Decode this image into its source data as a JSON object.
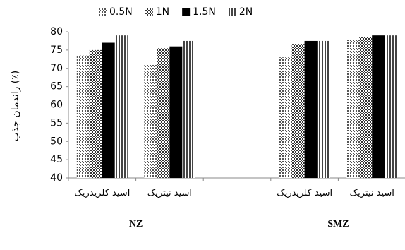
{
  "chart_data": {
    "type": "bar",
    "y_label": "راندمان جذب (٪)",
    "categories": [
      "اسید کلریدریک",
      "اسید نیتریک",
      null,
      "اسید کلریدریک",
      "اسید نیتریک"
    ],
    "groups": [
      {
        "label": "NZ",
        "categories": [
          0,
          1
        ]
      },
      {
        "label": "SMZ",
        "categories": [
          3,
          4
        ]
      }
    ],
    "series": [
      {
        "name": "0.5N",
        "color": "#555555",
        "pattern": "dots",
        "values": [
          73.5,
          71,
          null,
          73,
          78
        ]
      },
      {
        "name": "1N",
        "color": "#333333",
        "pattern": "checker",
        "values": [
          75,
          75.5,
          null,
          76.5,
          78.5
        ]
      },
      {
        "name": "1.5N",
        "color": "#000000",
        "pattern": "solid",
        "values": [
          77,
          76,
          null,
          77.5,
          79
        ]
      },
      {
        "name": "2N",
        "color": "#444444",
        "pattern": "stripes",
        "values": [
          79,
          77.5,
          null,
          77.5,
          79
        ]
      }
    ],
    "ylim": [
      40,
      80
    ],
    "yticks": [
      40,
      45,
      50,
      55,
      60,
      65,
      70,
      75,
      80
    ],
    "legend": "top"
  }
}
